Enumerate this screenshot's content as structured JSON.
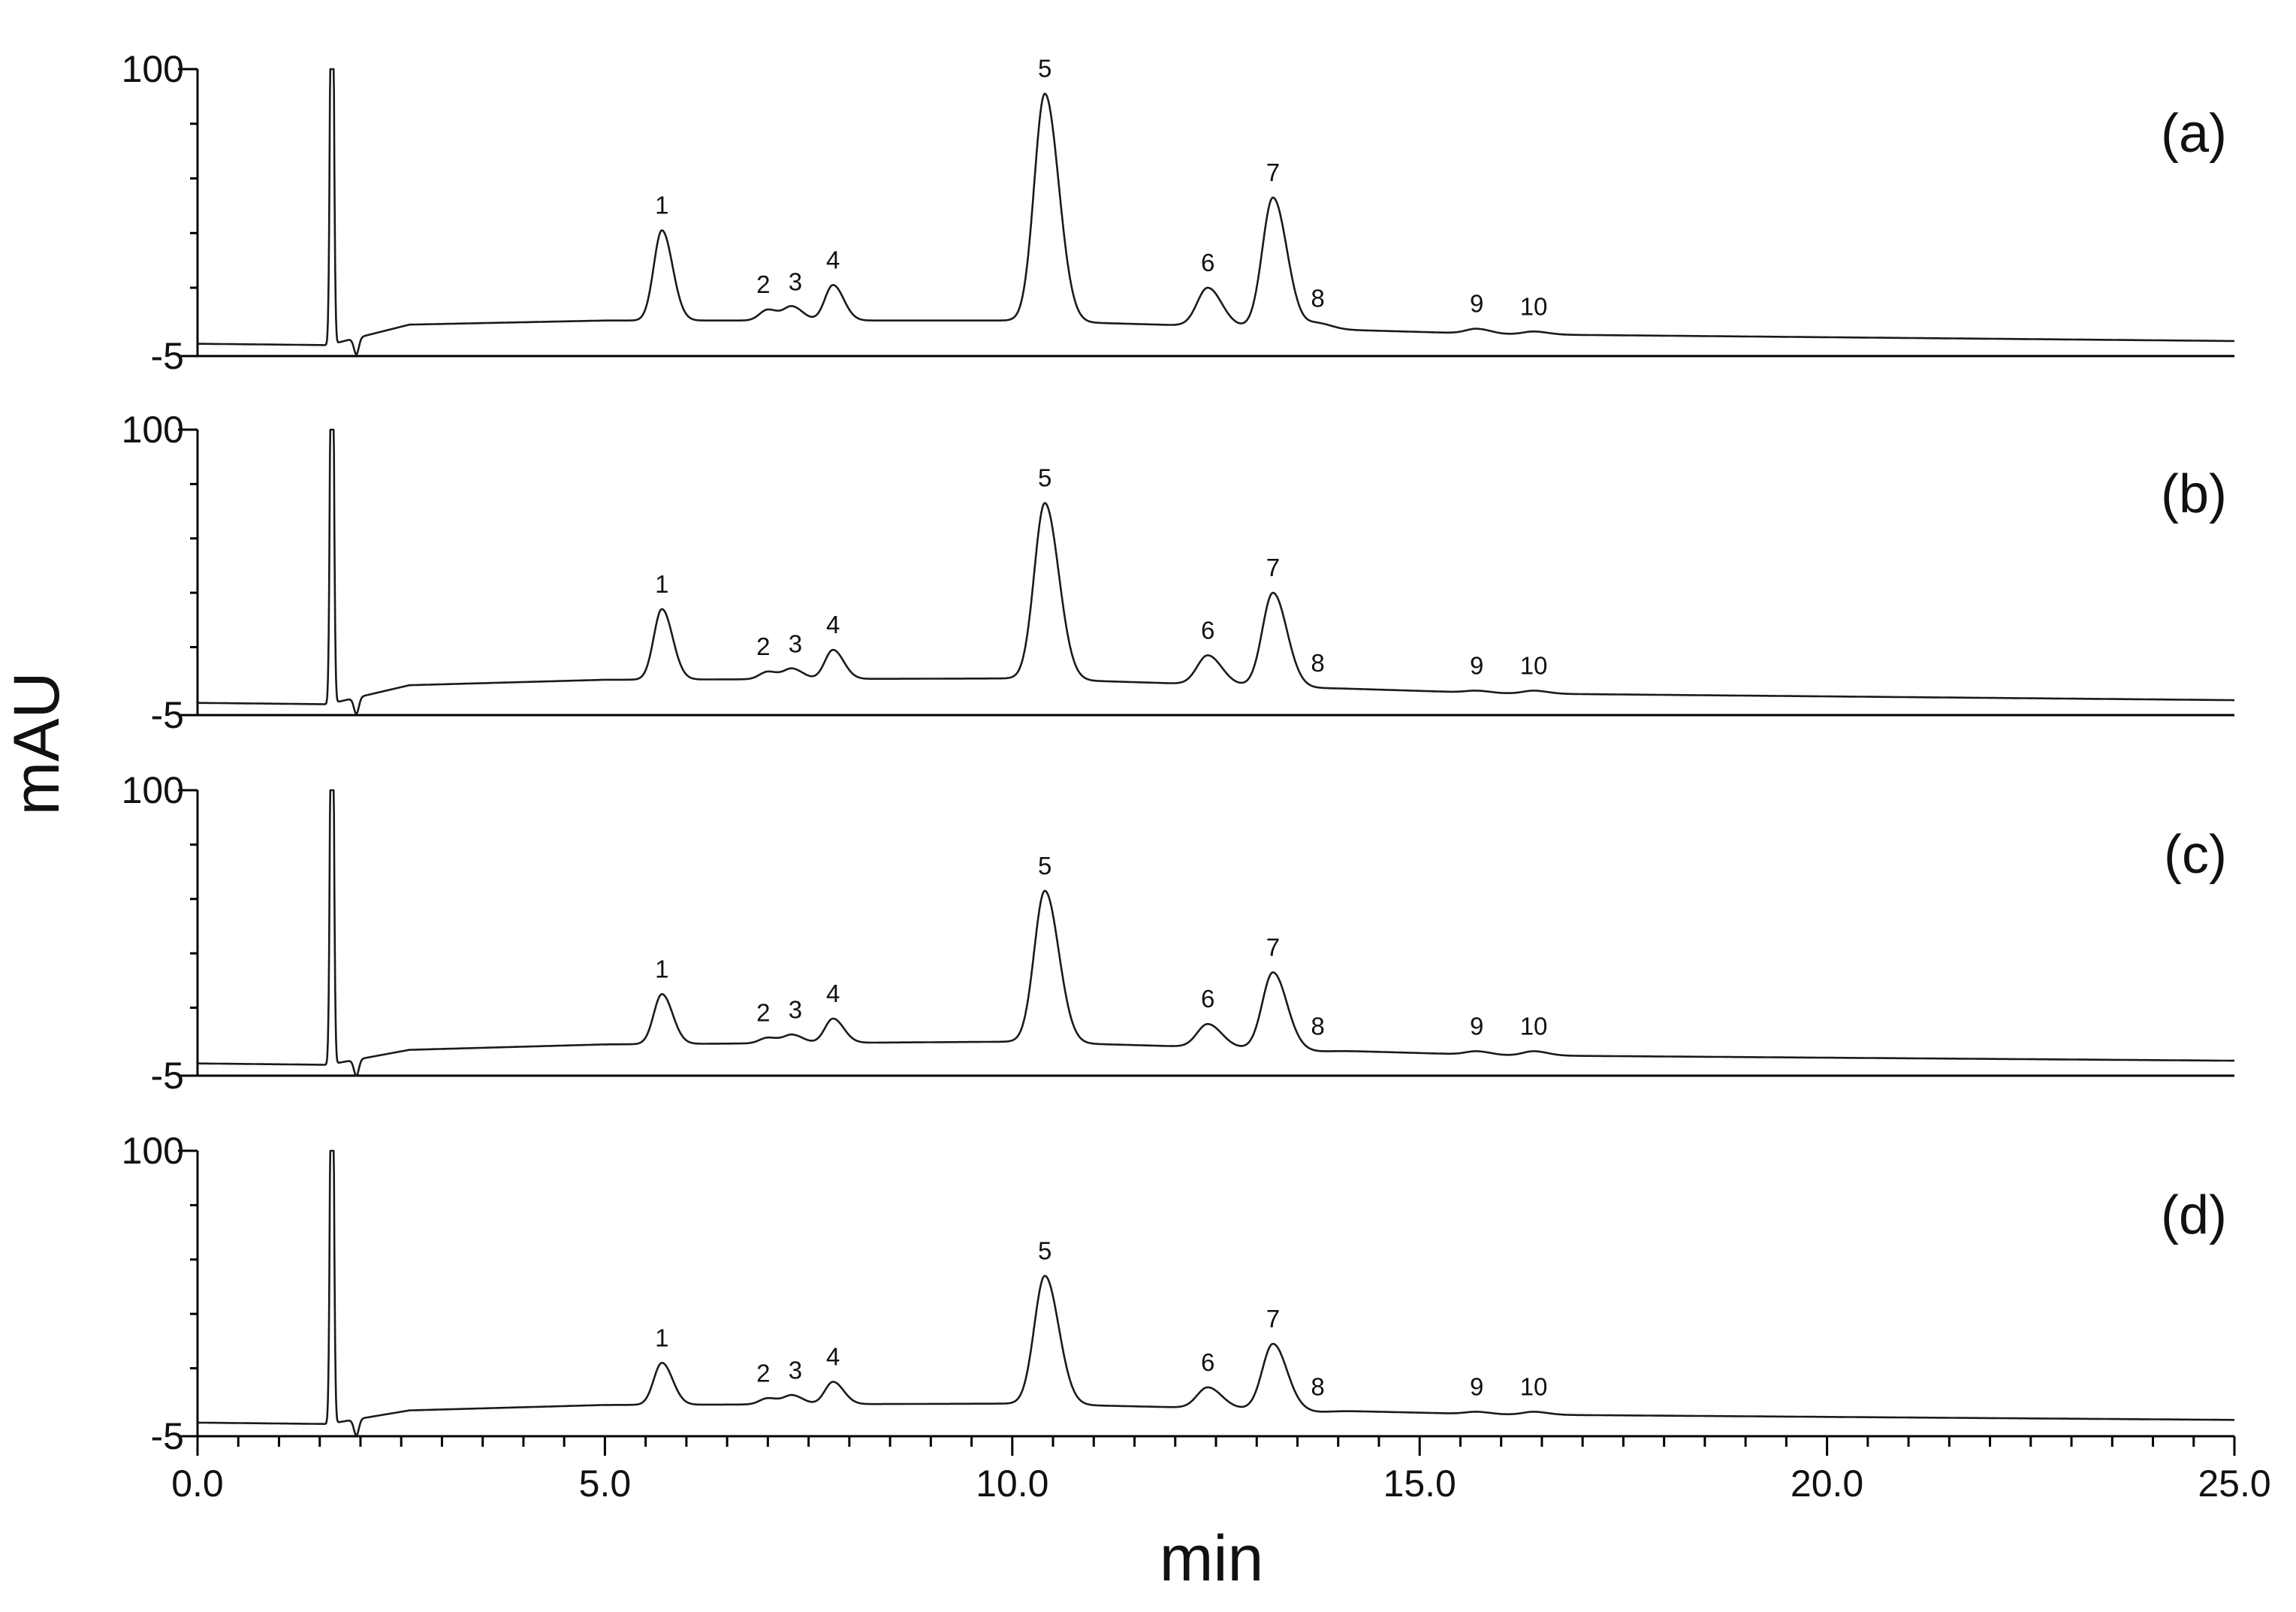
{
  "chart_data": {
    "type": "line",
    "xlabel": "min",
    "ylabel": "mAU",
    "xlim": [
      0,
      25
    ],
    "ylim": [
      -5,
      100
    ],
    "x_ticks": [
      "0.0",
      "5.0",
      "10.0",
      "15.0",
      "20.0",
      "25.0"
    ],
    "y_ticks": [
      "100",
      "-5"
    ],
    "grid": false,
    "panels": [
      {
        "label": "(a)",
        "baseline": [
          [
            0,
            -0.5
          ],
          [
            1.6,
            -1.0
          ],
          [
            2.6,
            6.5
          ],
          [
            5.0,
            8.0
          ],
          [
            10.0,
            8.0
          ],
          [
            16.0,
            3.0
          ],
          [
            25.0,
            0.5
          ]
        ],
        "peaks": [
          {
            "label": "1",
            "rt": 5.7,
            "height": 41
          },
          {
            "label": "2",
            "rt": 7.0,
            "height": 12
          },
          {
            "label": "3",
            "rt": 7.3,
            "height": 13
          },
          {
            "label": "4",
            "rt": 7.8,
            "height": 21
          },
          {
            "label": "5",
            "rt": 10.4,
            "height": 91
          },
          {
            "label": "6",
            "rt": 12.4,
            "height": 20
          },
          {
            "label": "7",
            "rt": 13.2,
            "height": 53
          },
          {
            "label": "8",
            "rt": 13.75,
            "height": 7
          },
          {
            "label": "9",
            "rt": 15.7,
            "height": 5
          },
          {
            "label": "10",
            "rt": 16.4,
            "height": 4
          }
        ]
      },
      {
        "label": "(b)",
        "baseline": [
          [
            0,
            -0.5
          ],
          [
            1.6,
            -1.0
          ],
          [
            2.6,
            6.0
          ],
          [
            5.0,
            8.0
          ],
          [
            10.0,
            8.5
          ],
          [
            16.0,
            3.0
          ],
          [
            25.0,
            0.5
          ]
        ],
        "peaks": [
          {
            "label": "1",
            "rt": 5.7,
            "height": 34
          },
          {
            "label": "2",
            "rt": 7.0,
            "height": 11
          },
          {
            "label": "3",
            "rt": 7.3,
            "height": 12
          },
          {
            "label": "4",
            "rt": 7.8,
            "height": 19
          },
          {
            "label": "5",
            "rt": 10.4,
            "height": 73
          },
          {
            "label": "6",
            "rt": 12.4,
            "height": 17
          },
          {
            "label": "7",
            "rt": 13.2,
            "height": 40
          },
          {
            "label": "8",
            "rt": 13.75,
            "height": 5
          },
          {
            "label": "9",
            "rt": 15.7,
            "height": 4
          },
          {
            "label": "10",
            "rt": 16.4,
            "height": 4
          }
        ]
      },
      {
        "label": "(c)",
        "baseline": [
          [
            0,
            -0.5
          ],
          [
            1.6,
            -1.0
          ],
          [
            2.6,
            4.5
          ],
          [
            5.0,
            6.5
          ],
          [
            10.0,
            7.5
          ],
          [
            16.0,
            2.5
          ],
          [
            25.0,
            0.5
          ]
        ],
        "peaks": [
          {
            "label": "1",
            "rt": 5.7,
            "height": 25
          },
          {
            "label": "2",
            "rt": 7.0,
            "height": 9
          },
          {
            "label": "3",
            "rt": 7.3,
            "height": 10
          },
          {
            "label": "4",
            "rt": 7.8,
            "height": 16
          },
          {
            "label": "5",
            "rt": 10.4,
            "height": 63
          },
          {
            "label": "6",
            "rt": 12.4,
            "height": 14
          },
          {
            "label": "7",
            "rt": 13.2,
            "height": 33
          },
          {
            "label": "8",
            "rt": 13.75,
            "height": 4
          },
          {
            "label": "9",
            "rt": 15.7,
            "height": 4
          },
          {
            "label": "10",
            "rt": 16.4,
            "height": 4
          }
        ]
      },
      {
        "label": "(d)",
        "baseline": [
          [
            0,
            0
          ],
          [
            1.6,
            -0.5
          ],
          [
            2.6,
            4.5
          ],
          [
            5.0,
            6.5
          ],
          [
            10.0,
            7.0
          ],
          [
            16.0,
            3.0
          ],
          [
            25.0,
            1.0
          ]
        ],
        "peaks": [
          {
            "label": "1",
            "rt": 5.7,
            "height": 22
          },
          {
            "label": "2",
            "rt": 7.0,
            "height": 9
          },
          {
            "label": "3",
            "rt": 7.3,
            "height": 10
          },
          {
            "label": "4",
            "rt": 7.8,
            "height": 15
          },
          {
            "label": "5",
            "rt": 10.4,
            "height": 54
          },
          {
            "label": "6",
            "rt": 12.4,
            "height": 13
          },
          {
            "label": "7",
            "rt": 13.2,
            "height": 29
          },
          {
            "label": "8",
            "rt": 13.75,
            "height": 4
          },
          {
            "label": "9",
            "rt": 15.7,
            "height": 4
          },
          {
            "label": "10",
            "rt": 16.4,
            "height": 4
          }
        ]
      }
    ],
    "solvent_front_rt": 1.65
  }
}
